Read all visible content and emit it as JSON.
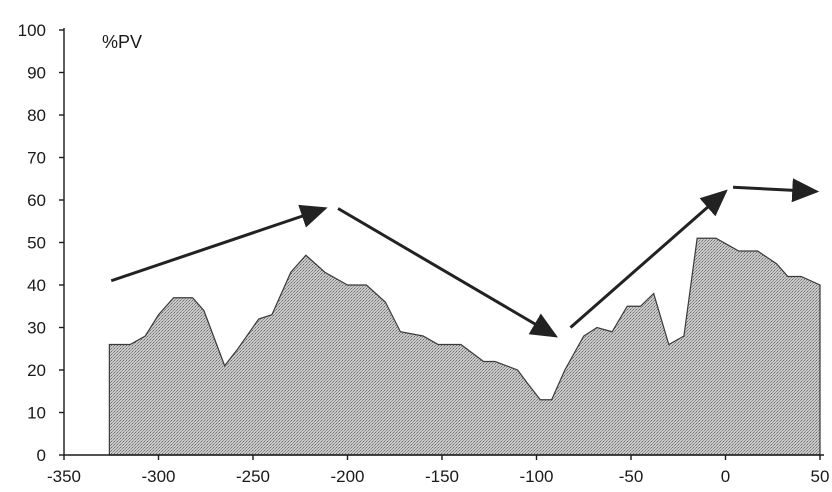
{
  "chart_data": {
    "type": "area",
    "unit_label": "%PV",
    "xlim": [
      -350,
      50
    ],
    "ylim": [
      0,
      100
    ],
    "x_ticks": [
      -350,
      -300,
      -250,
      -200,
      -150,
      -100,
      -50,
      0,
      50
    ],
    "y_ticks": [
      0,
      10,
      20,
      30,
      40,
      50,
      60,
      70,
      80,
      90,
      100
    ],
    "grid": false,
    "fill_color": "#a8a8a8",
    "series": [
      {
        "x": [
          -326,
          -315,
          -307,
          -300,
          -292,
          -282,
          -276,
          -265,
          -258,
          -247,
          -240,
          -230,
          -222,
          -212,
          -200,
          -190,
          -180,
          -172,
          -160,
          -152,
          -140,
          -128,
          -122,
          -110,
          -105,
          -98,
          -92,
          -85,
          -75,
          -68,
          -60,
          -52,
          -45,
          -38,
          -30,
          -22,
          -15,
          -5,
          7,
          17,
          27,
          33,
          40,
          50
        ],
        "y": [
          26,
          26,
          28,
          33,
          37,
          37,
          34,
          21,
          25,
          32,
          33,
          43,
          47,
          43,
          40,
          40,
          36,
          29,
          28,
          26,
          26,
          22,
          22,
          20,
          17,
          13,
          13,
          20,
          28,
          30,
          29,
          35,
          35,
          38,
          26,
          28,
          51,
          51,
          48,
          48,
          45,
          42,
          42,
          40
        ]
      }
    ],
    "annotations": [
      {
        "type": "arrow",
        "from": [
          -325,
          41
        ],
        "to": [
          -212,
          58
        ]
      },
      {
        "type": "arrow",
        "from": [
          -205,
          58
        ],
        "to": [
          -90,
          28
        ]
      },
      {
        "type": "arrow",
        "from": [
          -82,
          30
        ],
        "to": [
          0,
          62
        ]
      },
      {
        "type": "arrow",
        "from": [
          4,
          63
        ],
        "to": [
          48,
          62
        ]
      }
    ]
  }
}
